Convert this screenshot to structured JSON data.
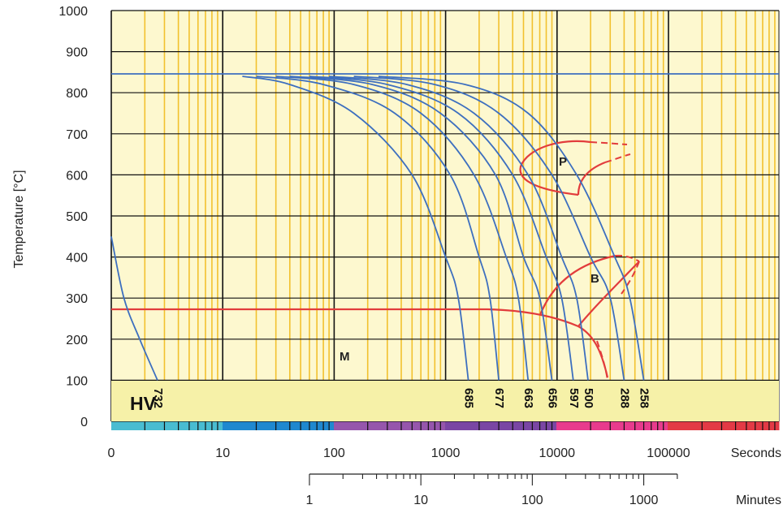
{
  "chart_data": {
    "type": "line",
    "title": "",
    "ylabel": "Temperature [°C]",
    "ylim": [
      0,
      1000
    ],
    "y_ticks": [
      "0",
      "100",
      "200",
      "300",
      "400",
      "500",
      "600",
      "700",
      "800",
      "900",
      "1000"
    ],
    "x_scale": "log",
    "x_unit_label": "Seconds",
    "x_ticks_seconds": [
      {
        "value": 1,
        "label": "0"
      },
      {
        "value": 10,
        "label": "10"
      },
      {
        "value": 100,
        "label": "100"
      },
      {
        "value": 1000,
        "label": "1000"
      },
      {
        "value": 10000,
        "label": "10000"
      },
      {
        "value": 100000,
        "label": "100000"
      }
    ],
    "x2_unit_label": "Minutes",
    "x2_ticks_minutes": [
      {
        "value": 1,
        "label": "1"
      },
      {
        "value": 10,
        "label": "10"
      },
      {
        "value": 100,
        "label": "100"
      },
      {
        "value": 1000,
        "label": "1000"
      }
    ],
    "grid": true,
    "austenitizing_temperature": 840,
    "martensite_start": 270,
    "hardness_label": "HV",
    "cooling_curves": [
      {
        "hv": "732",
        "points": [
          [
            1,
            450
          ],
          [
            1.3,
            300
          ],
          [
            1.8,
            200
          ],
          [
            2.6,
            100
          ]
        ]
      },
      {
        "hv": "685",
        "points": [
          [
            15,
            840
          ],
          [
            40,
            820
          ],
          [
            150,
            750
          ],
          [
            500,
            600
          ],
          [
            1000,
            400
          ],
          [
            1300,
            300
          ],
          [
            1600,
            100
          ]
        ]
      },
      {
        "hv": "677",
        "points": [
          [
            20,
            840
          ],
          [
            80,
            820
          ],
          [
            350,
            750
          ],
          [
            1100,
            600
          ],
          [
            2000,
            400
          ],
          [
            2500,
            300
          ],
          [
            3000,
            100
          ]
        ]
      },
      {
        "hv": "663",
        "points": [
          [
            30,
            840
          ],
          [
            150,
            820
          ],
          [
            600,
            750
          ],
          [
            1800,
            600
          ],
          [
            3500,
            400
          ],
          [
            4500,
            300
          ],
          [
            5500,
            100
          ]
        ]
      },
      {
        "hv": "656",
        "points": [
          [
            40,
            840
          ],
          [
            220,
            820
          ],
          [
            900,
            750
          ],
          [
            2800,
            600
          ],
          [
            5000,
            400
          ],
          [
            7000,
            300
          ],
          [
            9000,
            100
          ]
        ]
      },
      {
        "hv": "597",
        "points": [
          [
            60,
            840
          ],
          [
            300,
            820
          ],
          [
            1300,
            750
          ],
          [
            4000,
            600
          ],
          [
            8000,
            400
          ],
          [
            11000,
            300
          ],
          [
            14000,
            100
          ]
        ]
      },
      {
        "hv": "500",
        "points": [
          [
            90,
            840
          ],
          [
            450,
            820
          ],
          [
            1800,
            750
          ],
          [
            5500,
            600
          ],
          [
            11000,
            400
          ],
          [
            15000,
            300
          ],
          [
            19000,
            100
          ]
        ]
      },
      {
        "hv": "288",
        "points": [
          [
            150,
            840
          ],
          [
            800,
            820
          ],
          [
            3000,
            750
          ],
          [
            9000,
            600
          ],
          [
            20000,
            400
          ],
          [
            30000,
            300
          ],
          [
            40000,
            100
          ]
        ]
      },
      {
        "hv": "258",
        "points": [
          [
            250,
            840
          ],
          [
            1500,
            820
          ],
          [
            5500,
            750
          ],
          [
            15000,
            600
          ],
          [
            33000,
            400
          ],
          [
            45000,
            300
          ],
          [
            60000,
            100
          ]
        ]
      }
    ],
    "phase_regions": [
      {
        "name": "P",
        "temp_range": [
          550,
          680
        ]
      },
      {
        "name": "B",
        "temp_range": [
          220,
          410
        ]
      },
      {
        "name": "M",
        "temp_range": [
          0,
          270
        ]
      }
    ],
    "colors": {
      "background": "#fdf8cf",
      "grid_major": "#111111",
      "grid_minor": "#f2c12e",
      "curves": "#3d6fbf",
      "phases": "#e23c3c",
      "hv_band": "#f6f1a8",
      "axis_text": "#222222"
    },
    "color_bar": [
      "#49bcd1",
      "#1f88cf",
      "#9656ac",
      "#7a46a4",
      "#e83b8d",
      "#e33a45"
    ]
  }
}
